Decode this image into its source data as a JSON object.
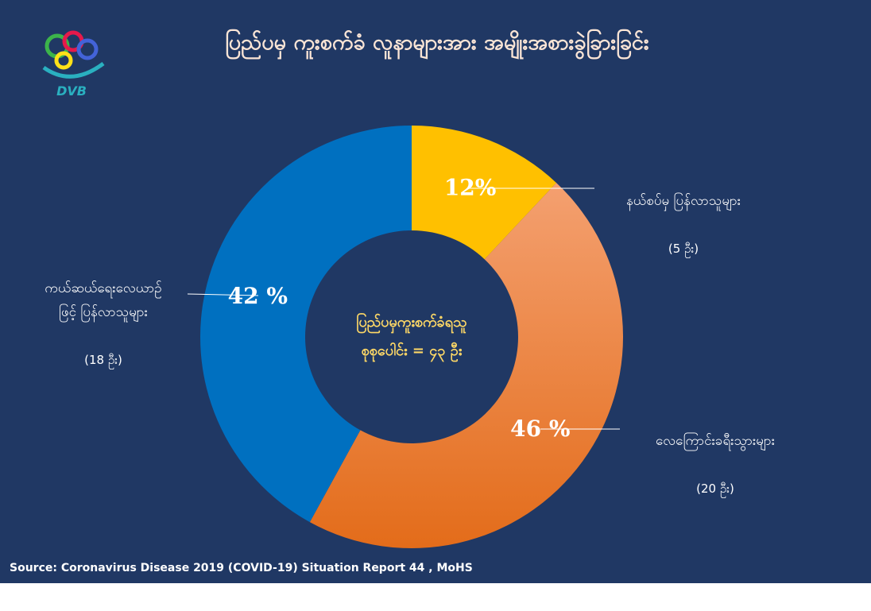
{
  "chart_data": {
    "type": "donut",
    "title": "ပြည်ပမှ ကူးစက်ခံ လူနာများအား အမျိုးအစားခွဲခြားခြင်း",
    "logo_text": "DVB",
    "center_label": "ပြည်ပမှကူးစက်ခံရသူ\nစုစုပေါင်း = ၄၃ ဦး",
    "categories": [
      "နယ်စပ်မှ  ပြန်လာသူများ",
      "လေကြောင်းခရီးသွားများ",
      "ကယ်ဆယ်ရေးလေယာဉ်\nဖြင့် ပြန်လာသူများ"
    ],
    "category_notes": [
      "(5 ဦး)",
      "(20 ဦး)",
      "(18 ဦး)"
    ],
    "values": [
      12,
      46,
      42
    ],
    "value_labels": [
      "12%",
      "46 %",
      "42 %"
    ],
    "colors": [
      "#ffc000",
      "#ed7d31",
      "#0070c0"
    ],
    "source": "Source: Coronavirus Disease 2019 (COVID-19) Situation Report 44 , MoHS"
  }
}
